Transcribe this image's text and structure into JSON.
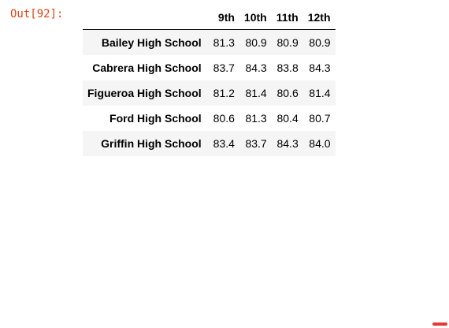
{
  "cell": {
    "prompt": "Out[92]:"
  },
  "table": {
    "columns": [
      "9th",
      "10th",
      "11th",
      "12th"
    ],
    "rows": [
      {
        "label": "Bailey High School",
        "values": [
          "81.3",
          "80.9",
          "80.9",
          "80.9"
        ]
      },
      {
        "label": "Cabrera High School",
        "values": [
          "83.7",
          "84.3",
          "83.8",
          "84.3"
        ]
      },
      {
        "label": "Figueroa High School",
        "values": [
          "81.2",
          "81.4",
          "80.6",
          "81.4"
        ]
      },
      {
        "label": "Ford High School",
        "values": [
          "80.6",
          "81.3",
          "80.4",
          "80.7"
        ]
      },
      {
        "label": "Griffin High School",
        "values": [
          "83.4",
          "83.7",
          "84.3",
          "84.0"
        ]
      }
    ]
  },
  "colors": {
    "prompt": "#d84315",
    "stripe": "#f5f5f5",
    "scroll_marker": "#e53935"
  }
}
